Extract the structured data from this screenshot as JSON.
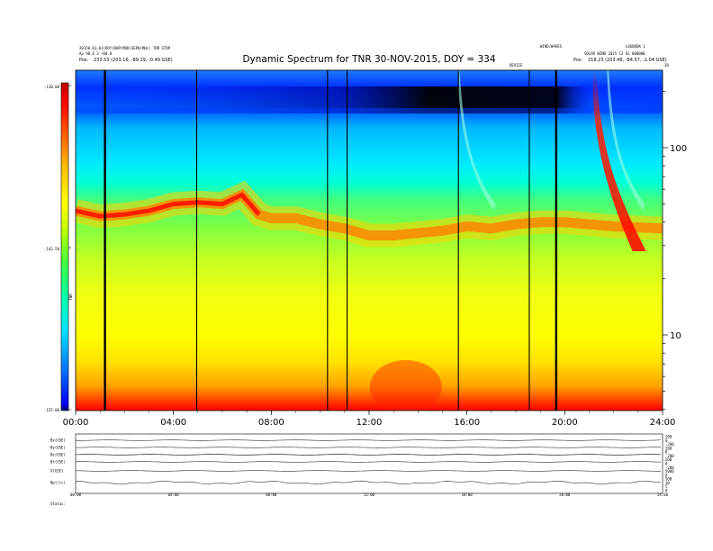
{
  "header": {
    "title": "Dynamic Spectrum for TNR 30-NOV-2015, DOY = 334",
    "left_info_1": "20150-01-01(DOY)DHP(MOD)SEP0(MHz)   TNR STOP",
    "left_info_2": "Ap 98.6 3 ~60.0",
    "left_pos_label": "Pos:",
    "left_pos": "233.53 (203.16, -89.19, -0.49 GSE)",
    "right_info_0": "WIND/WAVES",
    "right_info_1": "LOGBOOK 1",
    "right_info_2": "SOLAR WIND 2015 12 01 000000",
    "right_pos_label": "Pos:",
    "right_pos": "218.23 (203.46, -84.57, -1.04 GSE)",
    "right_marker": "20",
    "center_marker": "DEVICE"
  },
  "colorbar": {
    "label": "TNR",
    "ticks": [
      "-130.00",
      "-142.50",
      "-155.00"
    ]
  },
  "chart_data": {
    "type": "heatmap",
    "title": "Dynamic Spectrum for TNR 30-NOV-2015, DOY = 334",
    "xlabel": "",
    "ylabel": "",
    "x_ticks": [
      "00:00",
      "04:00",
      "08:00",
      "12:00",
      "16:00",
      "20:00",
      "24:00"
    ],
    "x_range_hours": [
      0,
      24
    ],
    "y_axis": "right",
    "y_scale": "log",
    "y_ticks": [
      10,
      100
    ],
    "y_range_kHz": [
      4,
      220
    ],
    "z_range": [
      -155,
      -130
    ],
    "colormap": [
      "#000000",
      "#0000ff",
      "#00c8ff",
      "#00ffff",
      "#00ff80",
      "#80ff00",
      "#ffff00",
      "#ffc000",
      "#ff6000",
      "#ff0000",
      "#b00000"
    ],
    "plasma_line_kHz": [
      [
        0,
        46
      ],
      [
        1,
        43
      ],
      [
        2,
        44
      ],
      [
        3,
        46
      ],
      [
        4,
        50
      ],
      [
        5,
        51
      ],
      [
        6,
        50
      ],
      [
        6.8,
        56
      ],
      [
        7.5,
        44
      ],
      [
        8,
        42
      ],
      [
        9,
        42
      ],
      [
        10,
        39
      ],
      [
        11,
        37
      ],
      [
        12,
        34
      ],
      [
        13,
        34
      ],
      [
        14,
        35
      ],
      [
        15,
        36
      ],
      [
        16,
        38
      ],
      [
        17,
        37
      ],
      [
        18,
        39
      ],
      [
        19,
        40
      ],
      [
        20,
        40
      ],
      [
        21,
        39
      ],
      [
        22,
        38
      ],
      [
        24,
        37
      ]
    ],
    "data_gaps_hours": [
      1.2,
      4.95,
      10.3,
      11.1,
      15.65,
      18.55,
      19.65
    ],
    "type3_bursts_start_hours": [
      15.7,
      21.3,
      21.8
    ]
  },
  "panels": {
    "labels": [
      "Bx(GSE)",
      "By(GSE)",
      "Bz(GSE)",
      "Bt(GSE)",
      "V(GSE)",
      "Np(/cc)",
      "Status"
    ],
    "right_scale_labels": [
      "200",
      "0",
      "-200",
      "200",
      "0",
      "-200",
      "200",
      "0",
      "-200",
      "5000",
      "0",
      "500",
      "10",
      "5",
      "0"
    ],
    "x_ticks": [
      "00:00",
      "04:00",
      "08:00",
      "12:00",
      "16:00",
      "20:00",
      "24:00"
    ],
    "status_label": "Status:"
  }
}
